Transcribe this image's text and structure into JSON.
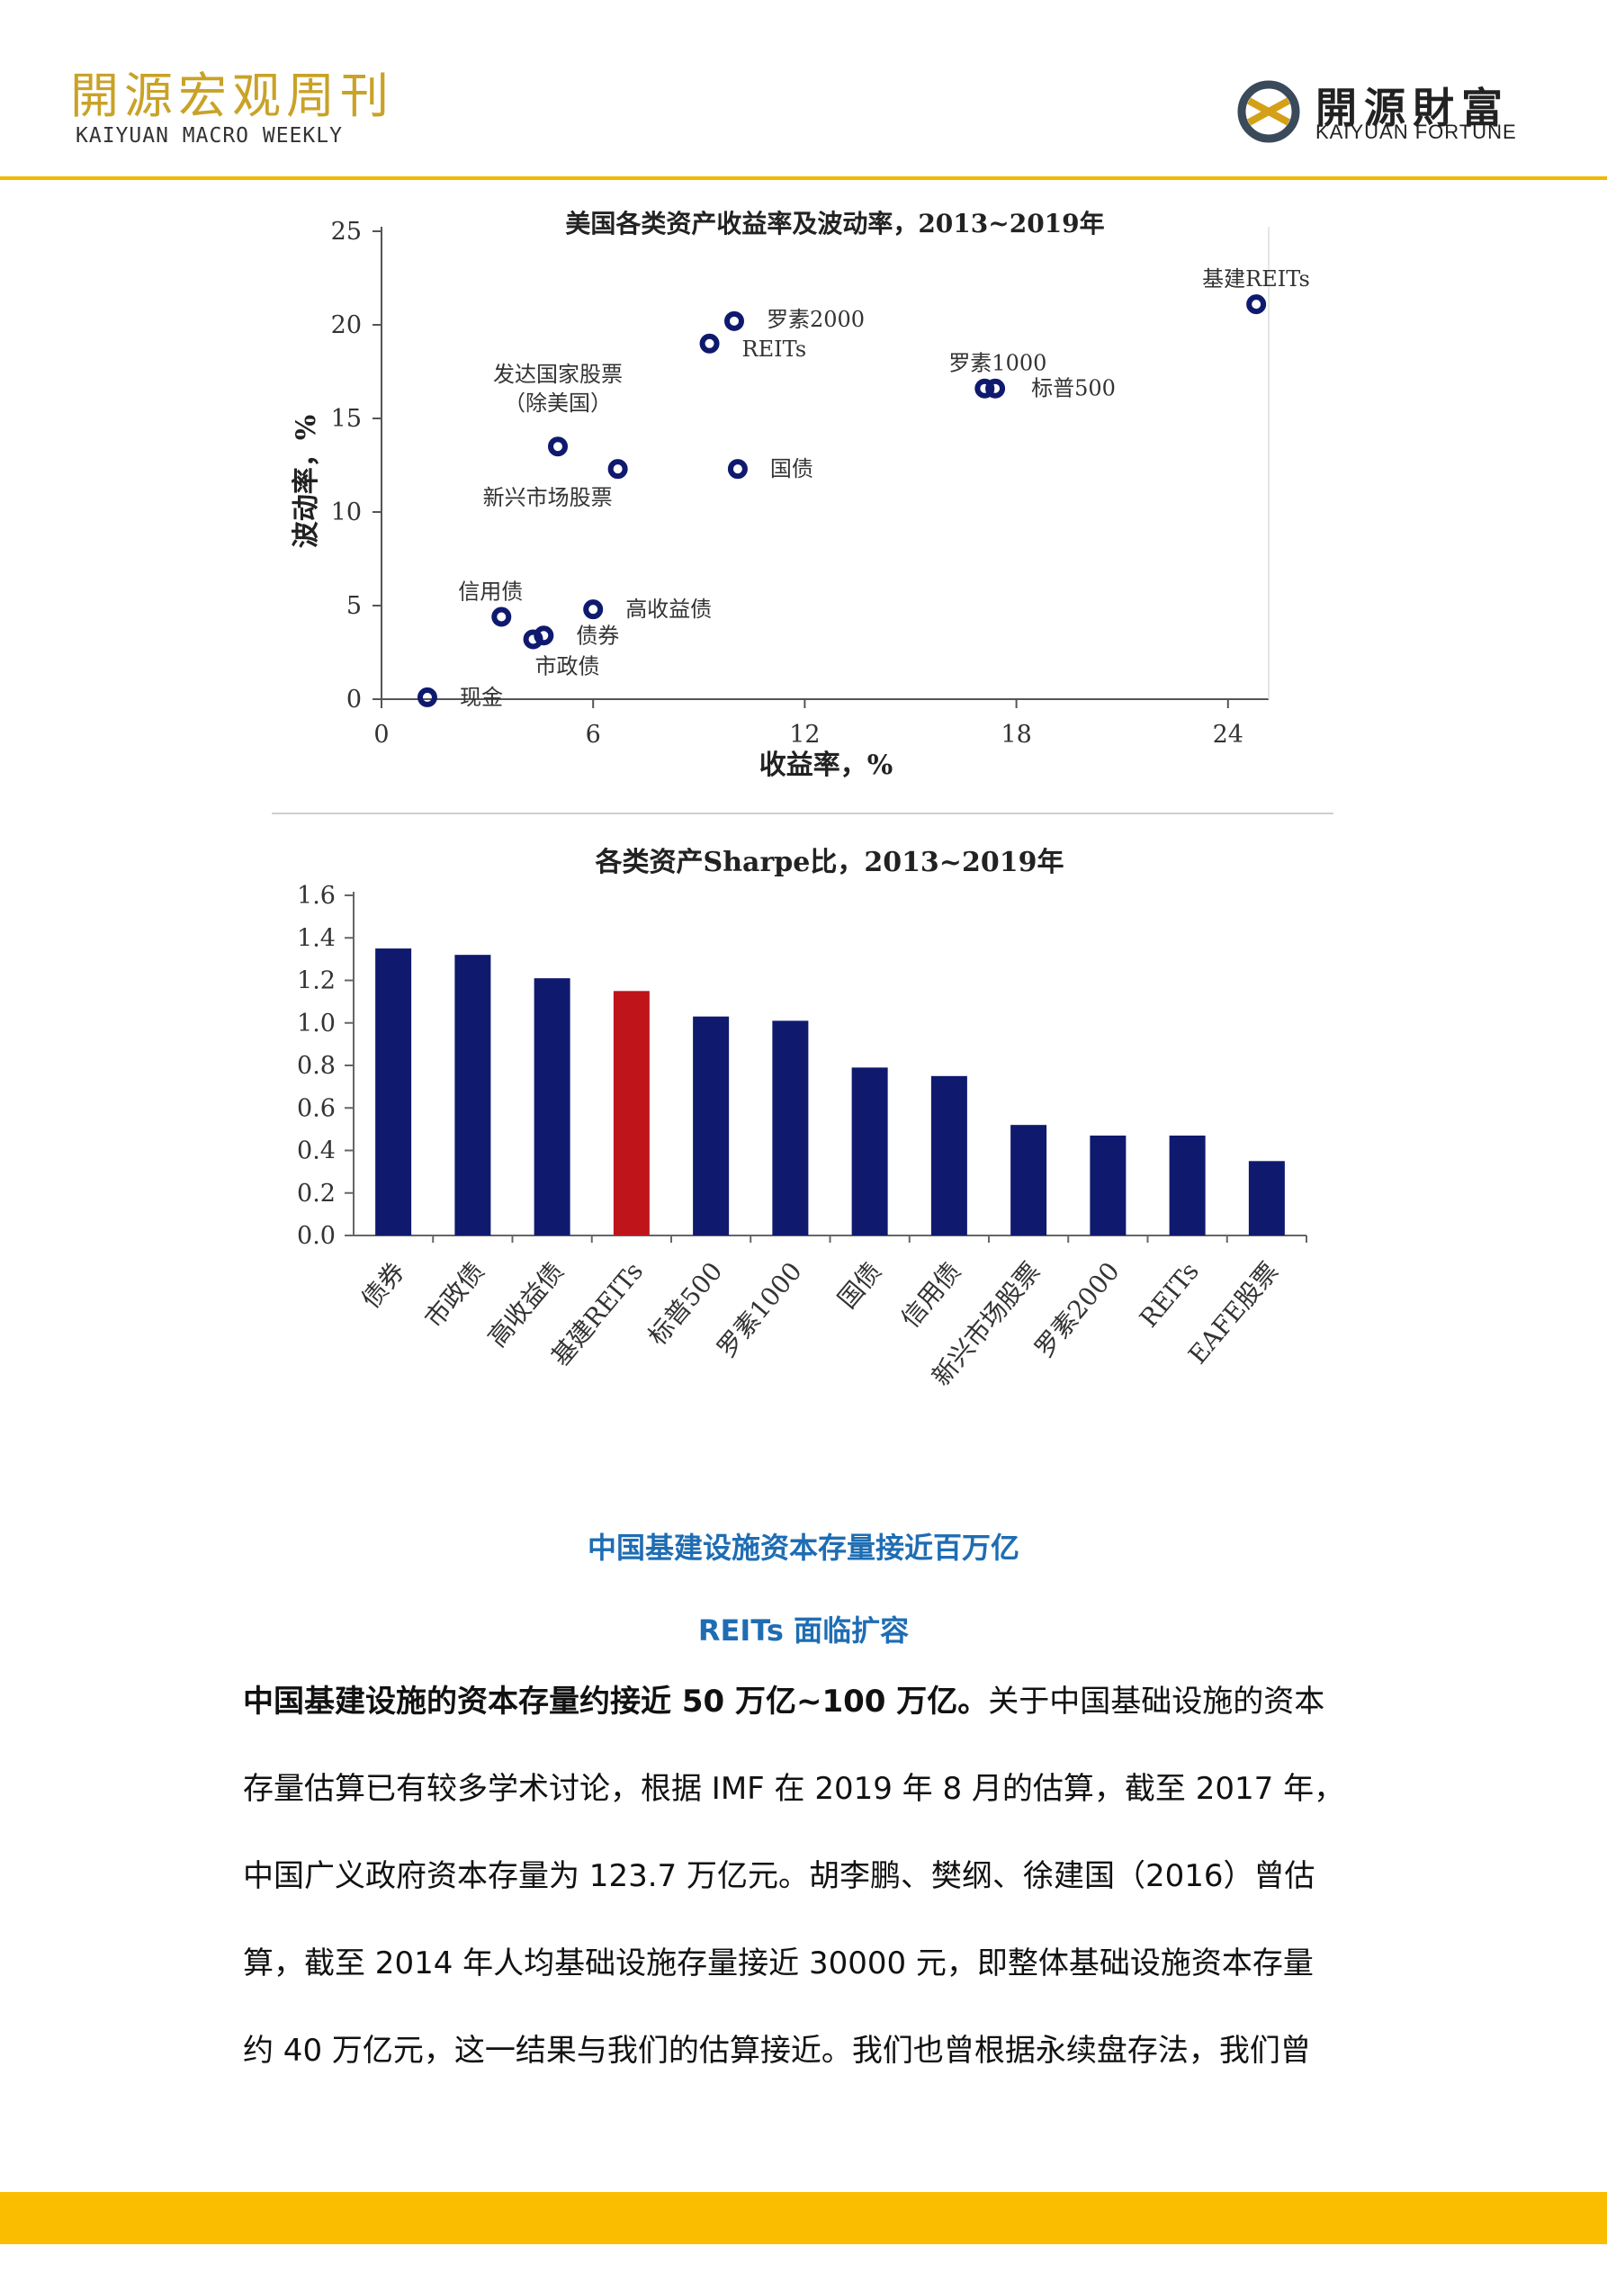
{
  "header": {
    "title": "開源宏观周刊",
    "subtitle": "KAIYUAN MACRO WEEKLY",
    "logo_cn": "開源財富",
    "logo_en": "KAIYUAN FORTUNE",
    "accent_color": "#f2b800",
    "title_color": "#c9a227"
  },
  "chart_data": [
    {
      "type": "scatter",
      "title": "美国各类资产收益率及波动率，2013~2019年",
      "xlabel": "收益率，%",
      "ylabel": "波动率，%",
      "xlim": [
        0,
        26
      ],
      "ylim": [
        0,
        25
      ],
      "xticks": [
        "0",
        "6",
        "12",
        "18",
        "24"
      ],
      "yticks": [
        "0",
        "5",
        "10",
        "15",
        "20",
        "25"
      ],
      "points": [
        {
          "label": "基建REITs",
          "x": 24.8,
          "y": 21.1
        },
        {
          "label": "罗素2000",
          "x": 10.0,
          "y": 20.2
        },
        {
          "label": "REITs",
          "x": 9.3,
          "y": 19.0
        },
        {
          "label": "罗素1000",
          "x": 17.1,
          "y": 16.6
        },
        {
          "label": "标普500",
          "x": 17.4,
          "y": 16.6
        },
        {
          "label": "发达国家股票\n（除美国）",
          "x": 5.0,
          "y": 13.5
        },
        {
          "label": "新兴市场股票",
          "x": 6.7,
          "y": 12.3
        },
        {
          "label": "国债",
          "x": 10.1,
          "y": 12.3
        },
        {
          "label": "信用债",
          "x": 3.4,
          "y": 4.4
        },
        {
          "label": "高收益债",
          "x": 6.0,
          "y": 4.8
        },
        {
          "label": "债券",
          "x": 4.6,
          "y": 3.4
        },
        {
          "label": "市政债",
          "x": 4.3,
          "y": 3.2
        },
        {
          "label": "现金",
          "x": 1.3,
          "y": 0.1
        }
      ]
    },
    {
      "type": "bar",
      "title": "各类资产Sharpe比，2013~2019年",
      "ylim": [
        0,
        1.6
      ],
      "yticks": [
        "0.0",
        "0.2",
        "0.4",
        "0.6",
        "0.8",
        "1.0",
        "1.2",
        "1.4",
        "1.6"
      ],
      "categories": [
        "债券",
        "市政债",
        "高收益债",
        "基建REITs",
        "标普500",
        "罗素1000",
        "国债",
        "信用债",
        "新兴市场股票",
        "罗素2000",
        "REITs",
        "EAFE股票"
      ],
      "values": [
        1.35,
        1.32,
        1.21,
        1.15,
        1.03,
        1.01,
        0.79,
        0.75,
        0.52,
        0.47,
        0.47,
        0.35
      ],
      "bar_color": "#0f1a6e",
      "highlight_category": "基建REITs",
      "highlight_color": "#c0141b"
    }
  ],
  "body": {
    "heading1": "中国基建设施资本存量接近百万亿",
    "heading2": "REITs 面临扩容",
    "lead": "中国基建设施的资本存量约接近 50 万亿~100 万亿。",
    "lines": [
      "关于中国基础设施的资本",
      "存量估算已有较多学术讨论，根据 IMF 在 2019 年 8 月的估算，截至 2017 年，",
      "中国广义政府资本存量为 123.7 万亿元。胡李鹏、樊纲、徐建国（2016）曾估",
      "算，截至 2014 年人均基础设施存量接近 30000 元，即整体基础设施资本存量",
      "约 40 万亿元，这一结果与我们的估算接近。我们也曾根据永续盘存法，我们曾"
    ]
  },
  "footer": {
    "color": "#fbbd00"
  }
}
